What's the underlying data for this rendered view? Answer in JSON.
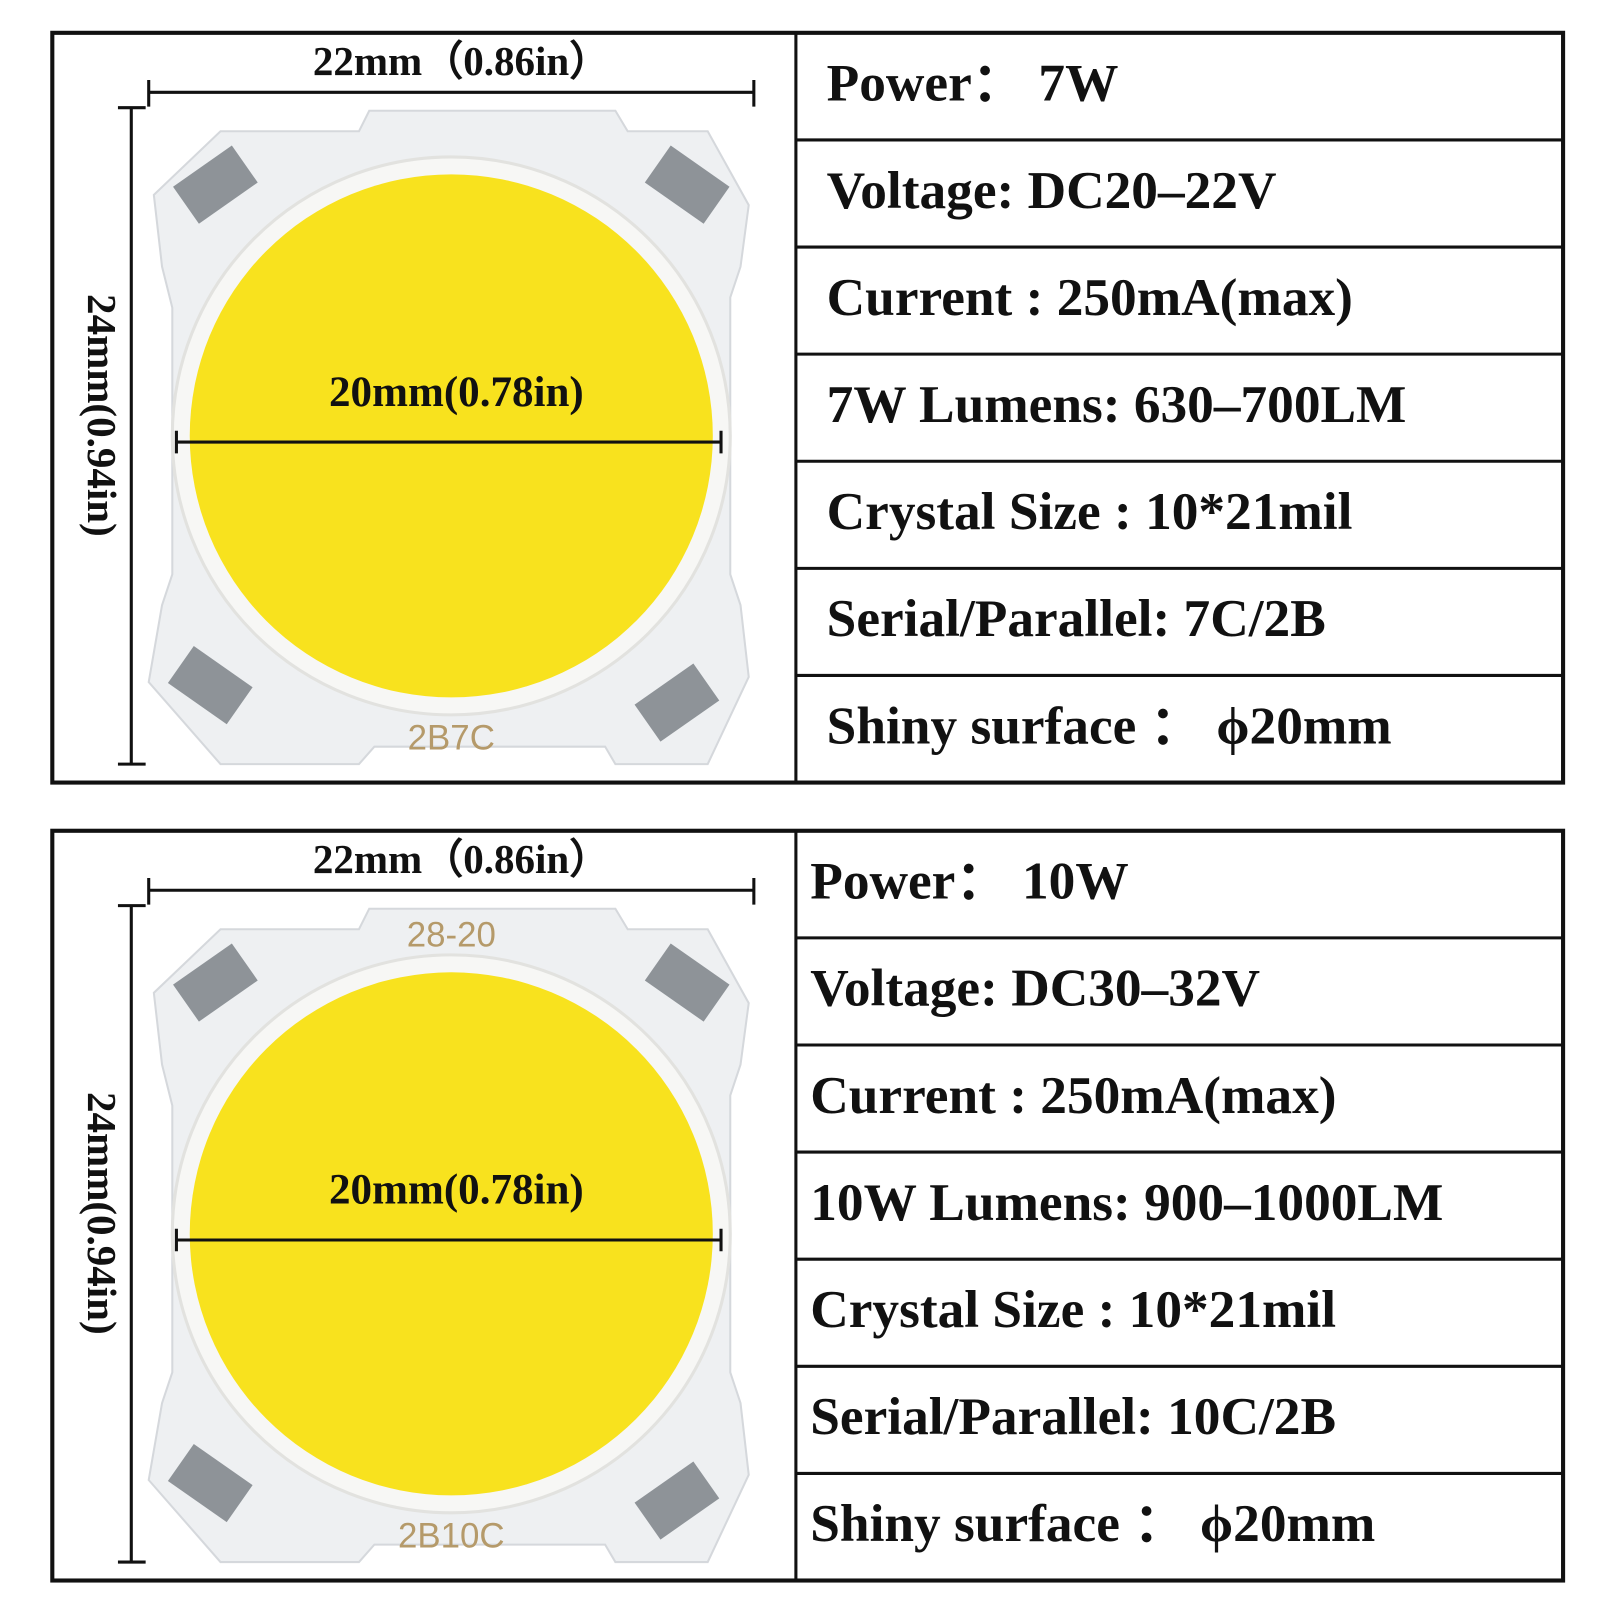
{
  "panels": [
    {
      "width_label": "22mm（0.86in）",
      "height_label": "24mm(0.94in)",
      "diameter_label": "20mm(0.78in)",
      "chip_markings": [
        "2B7C"
      ],
      "specs": [
        "Power：  7W",
        "Voltage: DC20–22V",
        "Current : 250mA(max)",
        "7W Lumens: 630–700LM",
        "Crystal Size : 10*21mil",
        "Serial/Parallel: 7C/2B",
        "Shiny surface ：  ϕ20mm"
      ]
    },
    {
      "width_label": "22mm（0.86in）",
      "height_label": "24mm(0.94in)",
      "diameter_label": "20mm(0.78in)",
      "chip_markings": [
        "28-20",
        "2B10C"
      ],
      "specs": [
        "Power：  10W",
        "Voltage: DC30–32V",
        "Current : 250mA(max)",
        "10W Lumens: 900–1000LM",
        "Crystal Size : 10*21mil",
        "Serial/Parallel: 10C/2B",
        "Shiny surface ：  ϕ20mm"
      ]
    }
  ]
}
